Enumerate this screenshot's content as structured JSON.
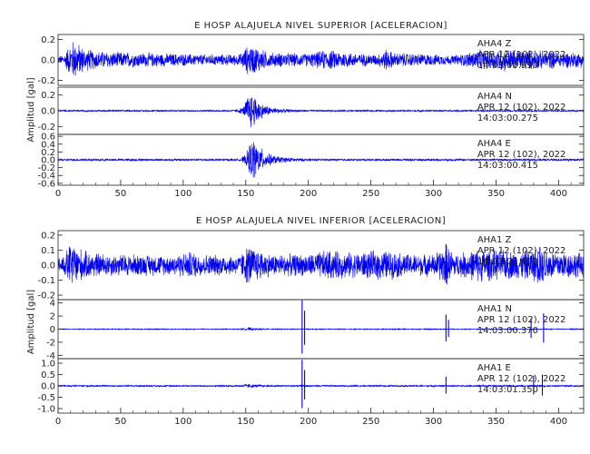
{
  "colors": {
    "trace": "#0000ee",
    "axis": "#222222",
    "background": "#ffffff"
  },
  "chart_data": [
    {
      "type": "line",
      "title": "E HOSP ALAJUELA NIVEL SUPERIOR [ACELERACION]",
      "ylabel": "Amplitud [gal]",
      "xlim": [
        0,
        420
      ],
      "xticks": [
        "0",
        "50",
        "100",
        "150",
        "200",
        "250",
        "300",
        "350",
        "400"
      ],
      "x_tick_values": [
        0,
        50,
        100,
        150,
        200,
        250,
        300,
        350,
        400
      ],
      "grid": false,
      "traces": [
        {
          "station": "AHA4   Z",
          "date": "APR 12 (102), 2022",
          "time": "14:03:00.990",
          "ylim": [
            -0.25,
            0.25
          ],
          "yticks": [
            "0.2",
            "0.0",
            "-0.2"
          ],
          "ytick_values": [
            0.2,
            0.0,
            -0.2
          ],
          "envelope": [
            [
              0,
              0.04
            ],
            [
              5,
              0.06
            ],
            [
              8,
              0.14
            ],
            [
              12,
              0.22
            ],
            [
              16,
              0.18
            ],
            [
              22,
              0.12
            ],
            [
              30,
              0.1
            ],
            [
              40,
              0.09
            ],
            [
              60,
              0.08
            ],
            [
              90,
              0.07
            ],
            [
              120,
              0.06
            ],
            [
              145,
              0.06
            ],
            [
              152,
              0.16
            ],
            [
              158,
              0.15
            ],
            [
              168,
              0.08
            ],
            [
              200,
              0.07
            ],
            [
              215,
              0.11
            ],
            [
              240,
              0.07
            ],
            [
              255,
              0.06
            ],
            [
              262,
              0.12
            ],
            [
              268,
              0.08
            ],
            [
              285,
              0.07
            ],
            [
              300,
              0.06
            ],
            [
              315,
              0.05
            ],
            [
              325,
              0.07
            ],
            [
              335,
              0.11
            ],
            [
              345,
              0.1
            ],
            [
              355,
              0.13
            ],
            [
              370,
              0.11
            ],
            [
              385,
              0.1
            ],
            [
              400,
              0.09
            ],
            [
              420,
              0.08
            ]
          ]
        },
        {
          "station": "AHA4   N",
          "date": "APR 12 (102), 2022",
          "time": "14:03:00.275",
          "ylim": [
            -0.3,
            0.3
          ],
          "yticks": [
            "0.2",
            "0.0",
            "-0.2"
          ],
          "ytick_values": [
            0.2,
            0.0,
            -0.2
          ],
          "envelope": [
            [
              0,
              0.012
            ],
            [
              140,
              0.012
            ],
            [
              148,
              0.05
            ],
            [
              151,
              0.2
            ],
            [
              154,
              0.26
            ],
            [
              158,
              0.2
            ],
            [
              163,
              0.1
            ],
            [
              170,
              0.05
            ],
            [
              185,
              0.02
            ],
            [
              200,
              0.012
            ],
            [
              420,
              0.012
            ]
          ]
        },
        {
          "station": "AHA4   E",
          "date": "APR 12 (102), 2022",
          "time": "14:03:00.415",
          "ylim": [
            -0.65,
            0.65
          ],
          "yticks": [
            "0.6",
            "0.4",
            "0.2",
            "0.0",
            "-0.2",
            "-0.4",
            "-0.6"
          ],
          "ytick_values": [
            0.6,
            0.4,
            0.2,
            0.0,
            -0.2,
            -0.4,
            -0.6
          ],
          "envelope": [
            [
              0,
              0.03
            ],
            [
              145,
              0.03
            ],
            [
              150,
              0.15
            ],
            [
              153,
              0.45
            ],
            [
              156,
              0.6
            ],
            [
              160,
              0.4
            ],
            [
              166,
              0.2
            ],
            [
              175,
              0.1
            ],
            [
              190,
              0.05
            ],
            [
              205,
              0.03
            ],
            [
              420,
              0.03
            ]
          ]
        }
      ]
    },
    {
      "type": "line",
      "title": "E HOSP ALAJUELA NIVEL INFERIOR [ACELERACION]",
      "ylabel": "Amplitud [gal]",
      "xlim": [
        0,
        420
      ],
      "xticks": [
        "0",
        "50",
        "100",
        "150",
        "200",
        "250",
        "300",
        "350",
        "400"
      ],
      "x_tick_values": [
        0,
        50,
        100,
        150,
        200,
        250,
        300,
        350,
        400
      ],
      "grid": false,
      "traces": [
        {
          "station": "AHA1   Z",
          "date": "APR 12 (102), 2022",
          "time": "14:03:01.600",
          "ylim": [
            -0.23,
            0.23
          ],
          "yticks": [
            "0.2",
            "0.1",
            "0.0",
            "-0.1",
            "-0.2"
          ],
          "ytick_values": [
            0.2,
            0.1,
            0.0,
            -0.1,
            -0.2
          ],
          "envelope": [
            [
              0,
              0.05
            ],
            [
              5,
              0.08
            ],
            [
              10,
              0.17
            ],
            [
              15,
              0.14
            ],
            [
              22,
              0.1
            ],
            [
              40,
              0.08
            ],
            [
              60,
              0.08
            ],
            [
              90,
              0.07
            ],
            [
              105,
              0.1
            ],
            [
              115,
              0.08
            ],
            [
              145,
              0.07
            ],
            [
              152,
              0.15
            ],
            [
              158,
              0.12
            ],
            [
              170,
              0.08
            ],
            [
              200,
              0.08
            ],
            [
              215,
              0.11
            ],
            [
              235,
              0.09
            ],
            [
              260,
              0.11
            ],
            [
              280,
              0.08
            ],
            [
              300,
              0.08
            ],
            [
              310,
              0.15
            ],
            [
              318,
              0.08
            ],
            [
              335,
              0.12
            ],
            [
              350,
              0.11
            ],
            [
              370,
              0.1
            ],
            [
              385,
              0.13
            ],
            [
              400,
              0.1
            ],
            [
              420,
              0.09
            ]
          ],
          "spikes": [
            [
              310,
              0.14
            ],
            [
              385,
              0.12
            ]
          ]
        },
        {
          "station": "AHA1   N",
          "date": "APR 12 (102), 2022",
          "time": "14:03:00.370",
          "ylim": [
            -4.5,
            4.5
          ],
          "yticks": [
            "4",
            "2",
            "0",
            "-2",
            "-4"
          ],
          "ytick_values": [
            4,
            2,
            0,
            -2,
            -4
          ],
          "envelope": [
            [
              0,
              0.08
            ],
            [
              145,
              0.08
            ],
            [
              152,
              0.25
            ],
            [
              160,
              0.12
            ],
            [
              180,
              0.08
            ],
            [
              420,
              0.08
            ]
          ],
          "spikes": [
            [
              195,
              4.4
            ],
            [
              197,
              2.8
            ],
            [
              310,
              2.2
            ],
            [
              312,
              1.4
            ],
            [
              378,
              1.6
            ],
            [
              388,
              2.4
            ]
          ]
        },
        {
          "station": "AHA1   E",
          "date": "APR 12 (102), 2022",
          "time": "14:03:01.350",
          "ylim": [
            -1.2,
            1.2
          ],
          "yticks": [
            "1.0",
            "0.5",
            "0.0",
            "-0.5",
            "-1.0"
          ],
          "ytick_values": [
            1.0,
            0.5,
            0.0,
            -0.5,
            -1.0
          ],
          "envelope": [
            [
              0,
              0.04
            ],
            [
              145,
              0.04
            ],
            [
              152,
              0.1
            ],
            [
              160,
              0.06
            ],
            [
              175,
              0.04
            ],
            [
              420,
              0.04
            ]
          ],
          "spikes": [
            [
              195,
              1.15
            ],
            [
              197,
              0.7
            ],
            [
              310,
              0.4
            ],
            [
              380,
              0.45
            ],
            [
              387,
              0.5
            ]
          ]
        }
      ]
    }
  ]
}
